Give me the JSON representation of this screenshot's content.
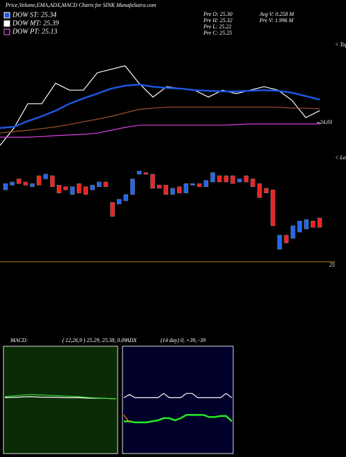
{
  "header": {
    "title": "Price,Volume,EMA,ADX,MACD Charts for SINK MunafaSutra.com",
    "legend": [
      {
        "label": "DOW ST: 25.34",
        "color": "#1e56e0"
      },
      {
        "label": "DOW MT: 25.39",
        "color": "#ffffff"
      },
      {
        "label": "DOW PT: 25.13",
        "color": "#ff66ff"
      }
    ],
    "quote": [
      "Pre  O: 25.30",
      "Pre  H: 25.32",
      "Pre  L: 25.22",
      "Pre  C: 25.25",
      "Avg V: 0.258  M",
      "Pre  V: 1.996  M"
    ]
  },
  "chart_data": [
    {
      "type": "line",
      "label_right": "< Tops",
      "ylim": [
        23.2,
        26.6
      ],
      "yticks": [
        24.03
      ],
      "series": [
        {
          "color": "#ffffff",
          "values": [
            23.31,
            23.86,
            24.63,
            24.63,
            25.28,
            25.06,
            25.06,
            25.61,
            25.72,
            25.83,
            25.28,
            24.84,
            25.17,
            25.11,
            25.06,
            24.84,
            25.06,
            24.95,
            25.06,
            25.17,
            25.06,
            24.74,
            24.19,
            24.41
          ]
        },
        {
          "color": "#1e56e0",
          "values": [
            23.86,
            23.9,
            24.08,
            24.23,
            24.41,
            24.63,
            24.8,
            24.95,
            25.11,
            25.2,
            25.24,
            25.17,
            25.13,
            25.11,
            25.06,
            25.04,
            25.02,
            25.02,
            25.04,
            25.06,
            25.04,
            24.98,
            24.87,
            24.76
          ]
        },
        {
          "color": "#a0522d",
          "values": [
            23.7,
            23.75,
            23.79,
            23.84,
            23.9,
            23.97,
            24.06,
            24.14,
            24.23,
            24.34,
            24.45,
            24.49,
            24.52,
            24.52,
            24.52,
            24.52,
            24.52,
            24.52,
            24.52,
            24.52,
            24.52,
            24.49,
            24.49,
            24.47
          ]
        },
        {
          "color": "#e040e0",
          "values": [
            23.57,
            23.57,
            23.57,
            23.59,
            23.62,
            23.64,
            23.66,
            23.7,
            23.79,
            23.88,
            23.95,
            23.95,
            23.95,
            23.95,
            23.95,
            23.95,
            23.95,
            23.97,
            23.99,
            23.99,
            23.99,
            23.99,
            23.99,
            23.99
          ]
        }
      ]
    },
    {
      "type": "candlestick",
      "label_right": "< Lows",
      "ylim": [
        25,
        25.7
      ],
      "yticks": [
        25
      ],
      "up_color": "#2266ee",
      "down_color": "#ee2222",
      "open": [
        25.46,
        25.49,
        25.53,
        25.51,
        25.48,
        25.55,
        25.53,
        25.55,
        25.49,
        25.48,
        25.43,
        25.5,
        25.48,
        25.46,
        25.48,
        25.51,
        25.38,
        25.37,
        25.39,
        25.43,
        25.56,
        25.57,
        25.56,
        25.49,
        25.49,
        25.43,
        25.48,
        25.44,
        25.49,
        25.5,
        25.48,
        25.51,
        25.55,
        25.55,
        25.55,
        25.51,
        25.55,
        25.53,
        25.5,
        25.47,
        25.46,
        25.08,
        25.17,
        25.15,
        25.19,
        25.21,
        25.26,
        25.28
      ],
      "close": [
        25.5,
        25.51,
        25.5,
        25.49,
        25.5,
        25.49,
        25.56,
        25.48,
        25.44,
        25.46,
        25.48,
        25.44,
        25.43,
        25.49,
        25.51,
        25.48,
        25.29,
        25.4,
        25.43,
        25.53,
        25.58,
        25.56,
        25.47,
        25.47,
        25.43,
        25.47,
        25.44,
        25.5,
        25.5,
        25.48,
        25.52,
        25.57,
        25.51,
        25.51,
        25.5,
        25.53,
        25.51,
        25.48,
        25.41,
        25.44,
        25.23,
        25.17,
        25.12,
        25.23,
        25.26,
        25.27,
        25.22,
        25.22
      ]
    },
    {
      "type": "line",
      "title": "MACD:",
      "subtitle": "( 12,26,9 ) 25.29, 25.38, 0.09",
      "ylim": [
        -1,
        1
      ],
      "background": "#0b2a06",
      "series": [
        {
          "color": "#ffffff",
          "values": [
            0.04,
            0.05,
            0.06,
            0.05,
            0.05,
            0.04,
            0.04,
            0.03,
            0.03,
            0.02
          ]
        },
        {
          "color": "#33dd33",
          "values": [
            0.06,
            0.08,
            0.1,
            0.09,
            0.08,
            0.07,
            0.06,
            0.04,
            0.03,
            0.02
          ]
        }
      ]
    },
    {
      "type": "line",
      "title": "ADX",
      "subtitle": "(14  day) 0, +39, -39",
      "ylim": [
        0,
        100
      ],
      "background": "#00002a",
      "series": [
        {
          "color": "#ffffff",
          "values": [
            52,
            55,
            52,
            52,
            52,
            52,
            52,
            56,
            52,
            52,
            52,
            56,
            56,
            52,
            52,
            52,
            52,
            52,
            56,
            52
          ]
        },
        {
          "color": "#22ee22",
          "values": [
            30,
            30,
            29,
            29,
            29,
            30,
            31,
            33,
            33,
            31,
            33,
            36,
            36,
            36,
            36,
            34,
            34,
            35,
            35,
            30
          ]
        },
        {
          "color": "#ff8800",
          "values": [
            36,
            29
          ]
        }
      ]
    }
  ]
}
